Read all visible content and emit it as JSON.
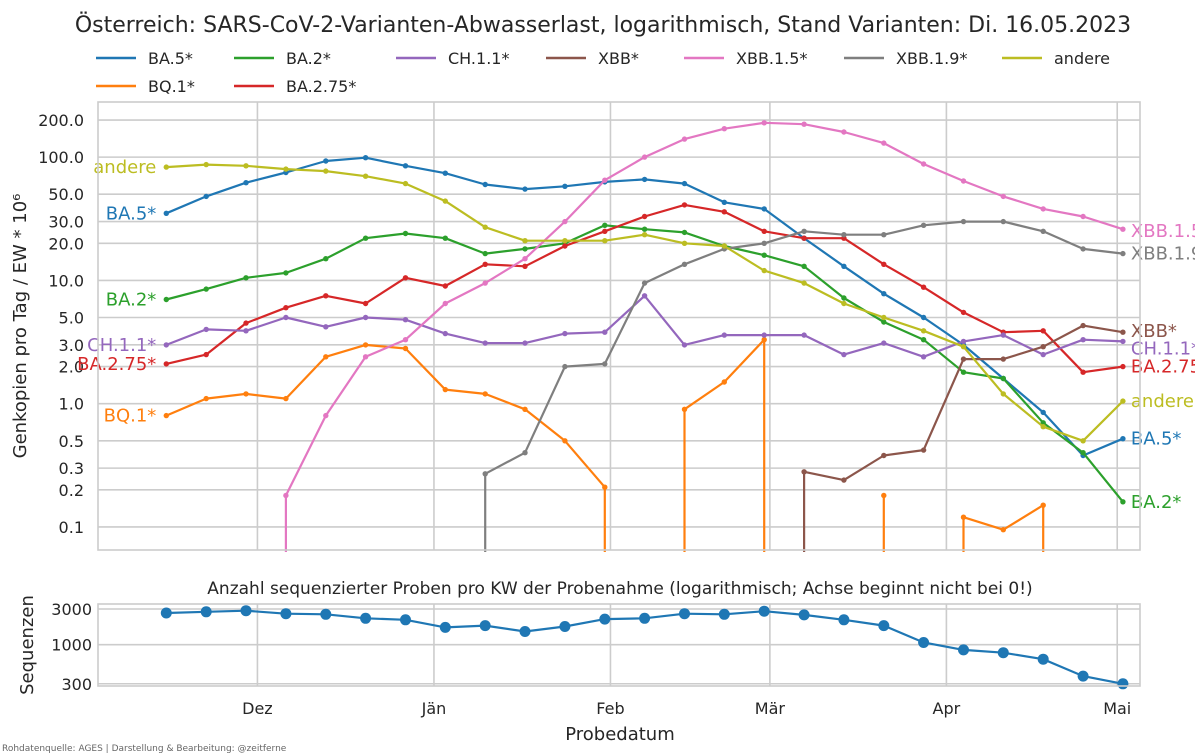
{
  "chart_data": [
    {
      "type": "line",
      "title": "Österreich: SARS-CoV-2-Varianten-Abwasserlast, logarithmisch, Stand Varianten: Di. 16.05.2023",
      "ylabel": "Genkopien pro Tag / EW * 10⁶",
      "yscale": "log",
      "ylim": [
        0.065,
        280
      ],
      "xlim": [
        "2022-11-03",
        "2023-05-05"
      ],
      "yticks": [
        "0.1",
        "0.2",
        "0.3",
        "0.5",
        "1.0",
        "2.0",
        "3.0",
        "5.0",
        "10.0",
        "20.0",
        "30.0",
        "50.0",
        "100.0",
        "200.0"
      ],
      "ytick_values": [
        0.1,
        0.2,
        0.3,
        0.5,
        1,
        2,
        3,
        5,
        10,
        20,
        30,
        50,
        100,
        200
      ],
      "x_dates": [
        "2022-11-15",
        "2022-11-22",
        "2022-11-29",
        "2022-12-06",
        "2022-12-13",
        "2022-12-20",
        "2022-12-27",
        "2023-01-03",
        "2023-01-10",
        "2023-01-17",
        "2023-01-24",
        "2023-01-31",
        "2023-02-07",
        "2023-02-14",
        "2023-02-21",
        "2023-02-28",
        "2023-03-07",
        "2023-03-14",
        "2023-03-21",
        "2023-03-28",
        "2023-04-04",
        "2023-04-11",
        "2023-04-18",
        "2023-04-25",
        "2023-05-02"
      ],
      "grid": true,
      "legend_position": "top",
      "series": [
        {
          "name": "BA.5*",
          "color": "#1f77b4",
          "end_label": "BA.5*",
          "start_label": "BA.5*",
          "values": [
            35,
            48,
            62,
            75,
            93,
            99,
            85,
            74,
            60,
            55,
            58,
            63,
            66,
            61,
            43,
            38,
            22,
            13,
            7.8,
            5,
            3,
            1.6,
            0.85,
            0.38,
            0.52
          ]
        },
        {
          "name": "BQ.1*",
          "color": "#ff7f0e",
          "start_label": "BQ.1*",
          "values": [
            0.8,
            1.1,
            1.2,
            1.1,
            2.4,
            3,
            2.8,
            1.3,
            1.2,
            0.9,
            0.5,
            0.21,
            null,
            0.9,
            1.5,
            3.3,
            null,
            null,
            0.18,
            null,
            0.12,
            0.095,
            0.15,
            null,
            null
          ]
        },
        {
          "name": "BA.2*",
          "color": "#2ca02c",
          "end_label": "BA.2*",
          "start_label": "BA.2*",
          "values": [
            7,
            8.5,
            10.5,
            11.5,
            15,
            22,
            24,
            22,
            16.5,
            18,
            20,
            28,
            26,
            24.5,
            19,
            16,
            13,
            7.2,
            4.6,
            3.3,
            1.8,
            1.6,
            0.7,
            0.4,
            0.16
          ]
        },
        {
          "name": "BA.2.75*",
          "color": "#d62728",
          "end_label": "BA.2.75*",
          "start_label": "BA.2.75*",
          "values": [
            2.1,
            2.5,
            4.5,
            6,
            7.5,
            6.5,
            10.5,
            9,
            13.5,
            13,
            19,
            25,
            33,
            41,
            36,
            25,
            22,
            22,
            13.5,
            8.8,
            5.5,
            3.8,
            3.9,
            1.8,
            2
          ]
        },
        {
          "name": "CH.1.1*",
          "color": "#9467bd",
          "end_label": "CH.1.1*",
          "start_label": "CH.1.1*",
          "values": [
            3,
            4,
            3.9,
            5,
            4.2,
            5,
            4.8,
            3.7,
            3.1,
            3.1,
            3.7,
            3.8,
            7.5,
            3,
            3.6,
            3.6,
            3.6,
            2.5,
            3.1,
            2.4,
            3.2,
            3.6,
            2.5,
            3.3,
            3.2
          ]
        },
        {
          "name": "XBB*",
          "color": "#8c564b",
          "end_label": "XBB*",
          "values": [
            null,
            null,
            null,
            null,
            null,
            null,
            null,
            null,
            null,
            null,
            null,
            null,
            null,
            null,
            null,
            null,
            0.28,
            0.24,
            0.38,
            0.42,
            2.3,
            2.3,
            2.9,
            4.3,
            3.8
          ]
        },
        {
          "name": "XBB.1.5*",
          "color": "#e377c2",
          "end_label": "XBB.1.5*",
          "values": [
            null,
            null,
            null,
            0.18,
            0.8,
            2.4,
            3.3,
            6.5,
            9.5,
            15,
            30,
            65,
            100,
            140,
            170,
            190,
            185,
            160,
            130,
            88,
            64,
            48,
            38,
            33,
            26
          ]
        },
        {
          "name": "XBB.1.9*",
          "color": "#7f7f7f",
          "end_label": "XBB.1.9*",
          "values": [
            null,
            null,
            null,
            null,
            null,
            null,
            null,
            null,
            0.27,
            0.4,
            2,
            2.1,
            9.5,
            13.5,
            18,
            20,
            25,
            23.5,
            23.5,
            28,
            30,
            30,
            25,
            18,
            16.5
          ]
        },
        {
          "name": "andere",
          "color": "#bcbd22",
          "end_label": "andere",
          "start_label": "andere",
          "values": [
            83,
            87,
            85,
            80,
            77,
            70,
            61,
            44,
            27,
            21,
            21,
            21,
            23.5,
            20,
            19,
            12,
            9.5,
            6.5,
            5,
            3.9,
            2.9,
            1.2,
            0.65,
            0.5,
            1.05
          ]
        }
      ]
    },
    {
      "type": "line",
      "title": "Anzahl sequenzierter Proben pro KW der Probenahme (logarithmisch; Achse beginnt nicht bei 0!)",
      "ylabel": "Sequenzen",
      "xlabel": "Probedatum",
      "yscale": "log",
      "ylim": [
        280,
        3500
      ],
      "yticks": [
        "300",
        "1000",
        "3000"
      ],
      "ytick_values": [
        300,
        1000,
        3000
      ],
      "xticks": [
        "Dez",
        "Jän",
        "Feb",
        "Mär",
        "Apr",
        "Mai"
      ],
      "xtick_dates": [
        "2022-12-01",
        "2023-01-01",
        "2023-02-01",
        "2023-03-01",
        "2023-04-01",
        "2023-05-01"
      ],
      "grid": true,
      "series": [
        {
          "color": "#1f77b4",
          "x": [
            "2022-11-15",
            "2022-11-22",
            "2022-11-29",
            "2022-12-06",
            "2022-12-13",
            "2022-12-20",
            "2022-12-27",
            "2023-01-03",
            "2023-01-10",
            "2023-01-17",
            "2023-01-24",
            "2023-01-31",
            "2023-02-07",
            "2023-02-14",
            "2023-02-21",
            "2023-02-28",
            "2023-03-07",
            "2023-03-14",
            "2023-03-21",
            "2023-03-28",
            "2023-04-04",
            "2023-04-11",
            "2023-04-18",
            "2023-04-25",
            "2023-05-02"
          ],
          "values": [
            2650,
            2750,
            2850,
            2600,
            2550,
            2250,
            2150,
            1700,
            1800,
            1500,
            1750,
            2200,
            2250,
            2600,
            2550,
            2800,
            2500,
            2150,
            1800,
            1070,
            850,
            780,
            640,
            380,
            300
          ]
        }
      ]
    }
  ],
  "legend": {
    "items": [
      {
        "label": "BA.5*",
        "color": "#1f77b4"
      },
      {
        "label": "BA.2*",
        "color": "#2ca02c"
      },
      {
        "label": "CH.1.1*",
        "color": "#9467bd"
      },
      {
        "label": "XBB*",
        "color": "#8c564b"
      },
      {
        "label": "XBB.1.5*",
        "color": "#e377c2"
      },
      {
        "label": "XBB.1.9*",
        "color": "#7f7f7f"
      },
      {
        "label": "andere",
        "color": "#bcbd22"
      },
      {
        "label": "BQ.1*",
        "color": "#ff7f0e"
      },
      {
        "label": "BA.2.75*",
        "color": "#d62728"
      }
    ]
  },
  "source": "Rohdatenquelle: AGES | Darstellung & Bearbeitung: @zeitferne"
}
